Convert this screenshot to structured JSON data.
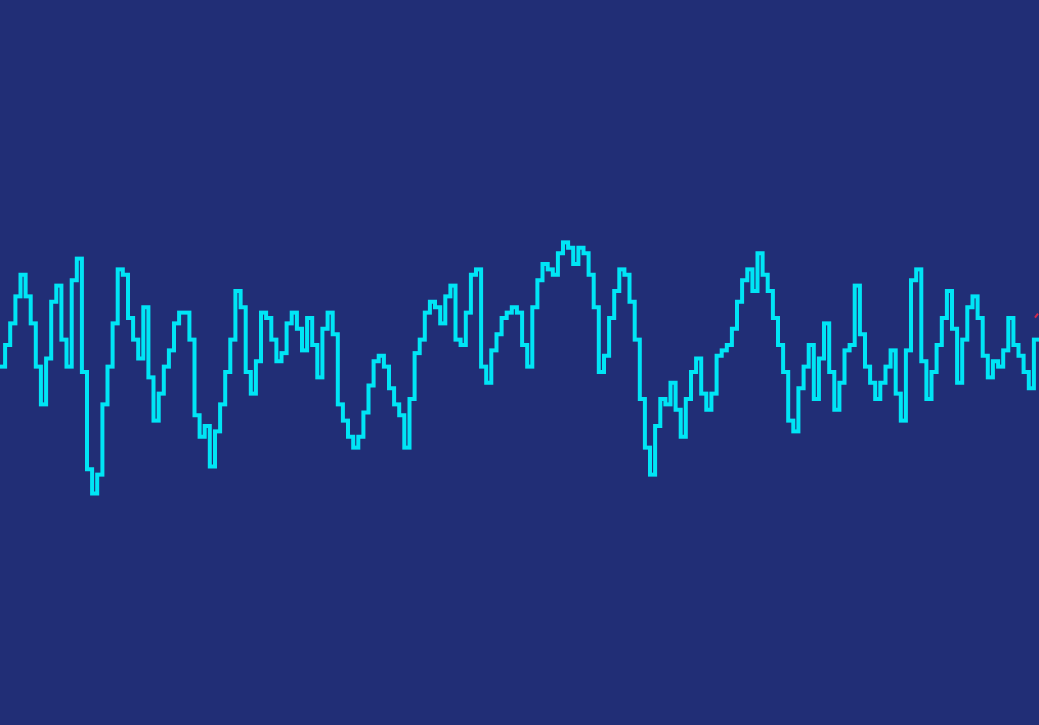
{
  "colors": {
    "background": "#212e76",
    "waveform": "#00e5f5",
    "marker": "#d0284a"
  },
  "waveform": {
    "samples": [
      -0.08,
      0.0,
      0.08,
      0.18,
      0.26,
      0.18,
      0.08,
      -0.08,
      -0.22,
      -0.05,
      0.16,
      0.22,
      0.02,
      -0.08,
      0.24,
      0.32,
      -0.1,
      -0.46,
      -0.55,
      -0.48,
      -0.22,
      -0.08,
      0.08,
      0.28,
      0.26,
      0.1,
      0.02,
      -0.05,
      0.14,
      -0.12,
      -0.28,
      -0.18,
      -0.08,
      -0.02,
      0.08,
      0.12,
      0.12,
      0.02,
      -0.26,
      -0.34,
      -0.3,
      -0.45,
      -0.32,
      -0.22,
      -0.1,
      0.02,
      0.2,
      0.14,
      -0.1,
      -0.18,
      -0.06,
      0.12,
      0.1,
      0.02,
      -0.06,
      -0.03,
      0.08,
      0.12,
      0.06,
      -0.02,
      0.1,
      0.0,
      -0.12,
      0.06,
      0.12,
      0.04,
      -0.22,
      -0.28,
      -0.34,
      -0.38,
      -0.34,
      -0.25,
      -0.15,
      -0.06,
      -0.04,
      -0.08,
      -0.16,
      -0.22,
      -0.26,
      -0.38,
      -0.2,
      -0.03,
      0.02,
      0.12,
      0.16,
      0.14,
      0.08,
      0.18,
      0.22,
      0.02,
      0.0,
      0.12,
      0.26,
      0.28,
      -0.08,
      -0.14,
      -0.02,
      0.04,
      0.1,
      0.12,
      0.14,
      0.12,
      0.0,
      -0.08,
      0.14,
      0.24,
      0.3,
      0.28,
      0.26,
      0.34,
      0.38,
      0.36,
      0.3,
      0.36,
      0.34,
      0.26,
      0.14,
      -0.1,
      -0.04,
      0.1,
      0.2,
      0.28,
      0.26,
      0.16,
      0.02,
      -0.2,
      -0.38,
      -0.48,
      -0.3,
      -0.2,
      -0.22,
      -0.14,
      -0.24,
      -0.34,
      -0.2,
      -0.1,
      -0.05,
      -0.18,
      -0.24,
      -0.18,
      -0.04,
      -0.02,
      0.0,
      0.06,
      0.16,
      0.24,
      0.28,
      0.2,
      0.34,
      0.26,
      0.2,
      0.1,
      0.0,
      -0.1,
      -0.28,
      -0.32,
      -0.16,
      -0.08,
      0.0,
      -0.2,
      -0.05,
      0.08,
      -0.1,
      -0.24,
      -0.14,
      -0.02,
      0.0,
      0.22,
      0.04,
      -0.08,
      -0.14,
      -0.2,
      -0.14,
      -0.08,
      -0.02,
      -0.18,
      -0.28,
      -0.02,
      0.24,
      0.28,
      -0.06,
      -0.2,
      -0.1,
      0.0,
      0.1,
      0.2,
      0.06,
      -0.14,
      0.02,
      0.14,
      0.18,
      0.1,
      -0.04,
      -0.12,
      -0.06,
      -0.08,
      -0.02,
      0.1,
      0.0,
      -0.04,
      -0.1,
      -0.16,
      0.02
    ],
    "amplitude_range": [
      -1,
      1
    ]
  }
}
